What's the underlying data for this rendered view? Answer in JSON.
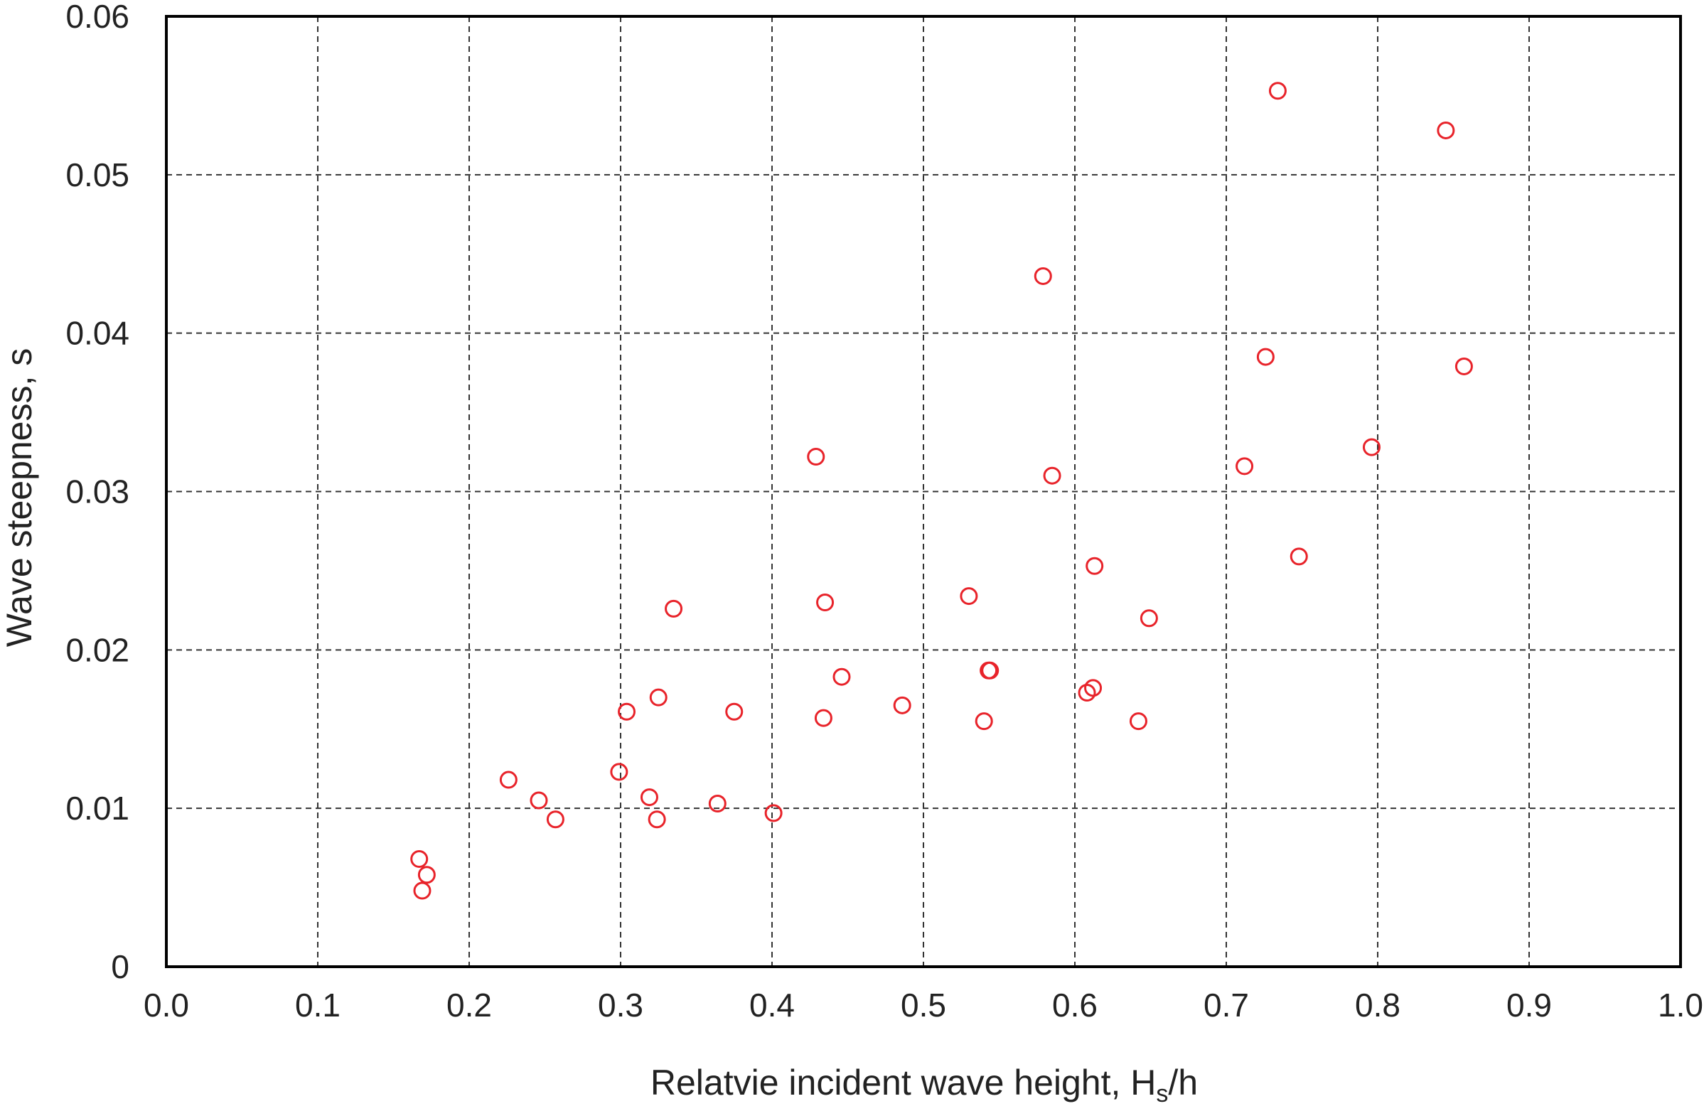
{
  "chart_data": {
    "type": "scatter",
    "title": "",
    "xlabel": {
      "main": "Relatvie incident wave height, H",
      "subscript": "s",
      "suffix": "/h"
    },
    "ylabel": "Wave steepness, s",
    "xlim": [
      0.0,
      1.0
    ],
    "ylim": [
      0,
      0.06
    ],
    "x_ticks": [
      0.0,
      0.1,
      0.2,
      0.3,
      0.4,
      0.5,
      0.6,
      0.7,
      0.8,
      0.9,
      1.0
    ],
    "x_tick_labels": [
      "0.0",
      "0.1",
      "0.2",
      "0.3",
      "0.4",
      "0.5",
      "0.6",
      "0.7",
      "0.8",
      "0.9",
      "1.0"
    ],
    "y_ticks": [
      0,
      0.01,
      0.02,
      0.03,
      0.04,
      0.05,
      0.06
    ],
    "y_tick_labels": [
      "0",
      "0.01",
      "0.02",
      "0.03",
      "0.04",
      "0.05",
      "0.06"
    ],
    "grid": true,
    "grid_style": "dashed",
    "marker": "open-circle",
    "marker_color": "#e8232a",
    "series": [
      {
        "x": [
          0.167,
          0.169,
          0.172,
          0.226,
          0.246,
          0.257,
          0.299,
          0.304,
          0.319,
          0.324,
          0.325,
          0.335,
          0.364,
          0.375,
          0.401,
          0.429,
          0.434,
          0.435,
          0.446,
          0.486,
          0.53,
          0.54,
          0.543,
          0.544,
          0.579,
          0.585,
          0.608,
          0.612,
          0.613,
          0.642,
          0.649,
          0.712,
          0.726,
          0.734,
          0.748,
          0.796,
          0.845,
          0.857
        ],
        "y": [
          0.0068,
          0.0048,
          0.0058,
          0.0118,
          0.0105,
          0.0093,
          0.0123,
          0.0161,
          0.0107,
          0.0093,
          0.017,
          0.0226,
          0.0103,
          0.0161,
          0.0097,
          0.0322,
          0.0157,
          0.023,
          0.0183,
          0.0165,
          0.0234,
          0.0155,
          0.0187,
          0.0187,
          0.0436,
          0.031,
          0.0173,
          0.0176,
          0.0253,
          0.0155,
          0.022,
          0.0316,
          0.0385,
          0.0553,
          0.0259,
          0.0328,
          0.0528,
          0.0379
        ]
      }
    ]
  }
}
